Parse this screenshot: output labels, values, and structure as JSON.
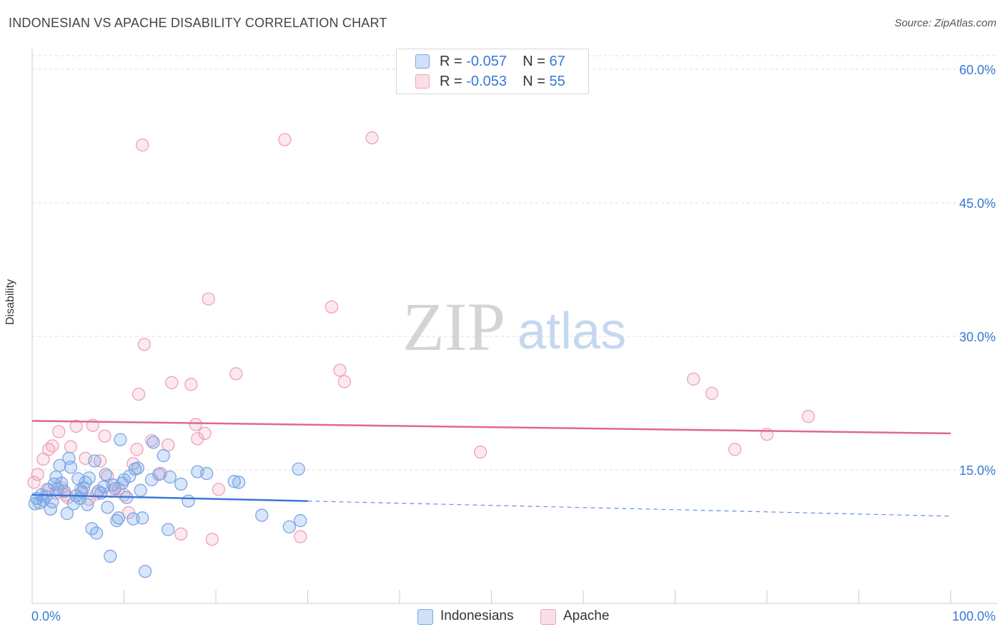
{
  "title": "INDONESIAN VS APACHE DISABILITY CORRELATION CHART",
  "source": "Source: ZipAtlas.com",
  "watermark": {
    "zip": "ZIP",
    "atlas": "atlas"
  },
  "colors": {
    "blue": "#3a78d8",
    "blue_fill": "rgba(120,165,235,0.28)",
    "blue_stroke": "#7aa6e6",
    "pink": "#e06890",
    "pink_fill": "rgba(240,150,180,0.22)",
    "pink_stroke": "#eea0bc",
    "axis_text": "#3a78d8"
  },
  "legend": {
    "rows": [
      {
        "r_label": "R = ",
        "r_value": "-0.057",
        "n_label": "N = ",
        "n_value": "67"
      },
      {
        "r_label": "R = ",
        "r_value": "-0.053",
        "n_label": "N = ",
        "n_value": "55"
      }
    ],
    "series": [
      "Indonesians",
      "Apache"
    ]
  },
  "chart_data": {
    "type": "scatter",
    "title": "INDONESIAN VS APACHE DISABILITY CORRELATION CHART",
    "xlabel": "",
    "ylabel": "Disability",
    "xlim": [
      0,
      100
    ],
    "ylim": [
      0,
      60
    ],
    "x_tick_labels": [
      "0.0%",
      "100.0%"
    ],
    "y_ticks": [
      15,
      30,
      45,
      60
    ],
    "y_tick_labels": [
      "15.0%",
      "30.0%",
      "45.0%",
      "60.0%"
    ],
    "grid": true,
    "series": [
      {
        "name": "Indonesians",
        "r": -0.057,
        "n": 67,
        "trend": {
          "x_start": 0,
          "y_start": 12.2,
          "x_solid_end": 30,
          "y_solid_end": 11.5,
          "x_end": 100,
          "y_end": 9.8
        },
        "points": [
          [
            0.3,
            11.2
          ],
          [
            0.5,
            11.8
          ],
          [
            0.8,
            11.3
          ],
          [
            1.0,
            12.2
          ],
          [
            1.2,
            11.6
          ],
          [
            1.5,
            12.0
          ],
          [
            1.8,
            12.8
          ],
          [
            2.0,
            10.6
          ],
          [
            2.2,
            11.4
          ],
          [
            2.4,
            13.4
          ],
          [
            2.6,
            14.2
          ],
          [
            2.8,
            12.9
          ],
          [
            3.0,
            15.5
          ],
          [
            3.2,
            13.5
          ],
          [
            3.5,
            12.6
          ],
          [
            3.8,
            10.1
          ],
          [
            4.0,
            16.3
          ],
          [
            4.2,
            15.3
          ],
          [
            4.5,
            11.2
          ],
          [
            4.8,
            12.1
          ],
          [
            5.0,
            14.0
          ],
          [
            5.2,
            11.8
          ],
          [
            5.4,
            12.5
          ],
          [
            5.6,
            13.0
          ],
          [
            5.8,
            13.6
          ],
          [
            6.0,
            11.1
          ],
          [
            6.2,
            14.1
          ],
          [
            6.5,
            8.4
          ],
          [
            6.8,
            16.0
          ],
          [
            7.0,
            7.9
          ],
          [
            7.2,
            12.6
          ],
          [
            7.5,
            12.4
          ],
          [
            7.8,
            13.1
          ],
          [
            8.0,
            14.5
          ],
          [
            8.2,
            10.8
          ],
          [
            8.5,
            5.3
          ],
          [
            8.8,
            13.3
          ],
          [
            9.0,
            12.9
          ],
          [
            9.2,
            9.3
          ],
          [
            9.4,
            9.6
          ],
          [
            9.6,
            18.4
          ],
          [
            9.8,
            13.5
          ],
          [
            10.0,
            13.9
          ],
          [
            10.3,
            11.9
          ],
          [
            10.6,
            14.3
          ],
          [
            11.0,
            9.5
          ],
          [
            11.2,
            15.1
          ],
          [
            11.5,
            15.2
          ],
          [
            11.8,
            12.7
          ],
          [
            12.0,
            9.6
          ],
          [
            12.3,
            3.6
          ],
          [
            13.0,
            13.9
          ],
          [
            13.2,
            18.1
          ],
          [
            13.8,
            14.5
          ],
          [
            14.3,
            16.6
          ],
          [
            14.8,
            8.3
          ],
          [
            15.0,
            14.2
          ],
          [
            16.2,
            13.4
          ],
          [
            17.0,
            11.5
          ],
          [
            18.0,
            14.8
          ],
          [
            19.0,
            14.6
          ],
          [
            22.0,
            13.7
          ],
          [
            22.5,
            13.6
          ],
          [
            25.0,
            9.9
          ],
          [
            28.0,
            8.6
          ],
          [
            29.0,
            15.1
          ],
          [
            29.2,
            9.3
          ]
        ]
      },
      {
        "name": "Apache",
        "r": -0.053,
        "n": 55,
        "trend": {
          "x_start": 0,
          "y_start": 20.5,
          "x_end": 100,
          "y_end": 19.1
        },
        "points": [
          [
            0.2,
            13.6
          ],
          [
            0.6,
            14.5
          ],
          [
            1.2,
            16.2
          ],
          [
            1.6,
            12.8
          ],
          [
            1.8,
            17.3
          ],
          [
            2.2,
            17.7
          ],
          [
            2.6,
            12.4
          ],
          [
            2.9,
            19.3
          ],
          [
            3.2,
            13.0
          ],
          [
            3.6,
            12.2
          ],
          [
            3.9,
            11.9
          ],
          [
            4.2,
            17.6
          ],
          [
            4.8,
            19.9
          ],
          [
            5.3,
            12.8
          ],
          [
            5.8,
            16.3
          ],
          [
            6.2,
            11.7
          ],
          [
            6.6,
            20.0
          ],
          [
            7.0,
            12.3
          ],
          [
            7.4,
            16.0
          ],
          [
            7.9,
            18.8
          ],
          [
            8.2,
            14.3
          ],
          [
            8.6,
            12.6
          ],
          [
            9.4,
            12.9
          ],
          [
            10.0,
            12.2
          ],
          [
            10.5,
            10.2
          ],
          [
            11.0,
            15.7
          ],
          [
            11.4,
            17.3
          ],
          [
            11.6,
            23.5
          ],
          [
            12.0,
            51.5
          ],
          [
            12.2,
            29.1
          ],
          [
            13.0,
            18.3
          ],
          [
            14.0,
            14.6
          ],
          [
            14.8,
            17.8
          ],
          [
            15.2,
            24.8
          ],
          [
            16.2,
            7.8
          ],
          [
            17.3,
            24.6
          ],
          [
            17.8,
            20.1
          ],
          [
            18.0,
            18.5
          ],
          [
            18.8,
            19.1
          ],
          [
            19.2,
            34.2
          ],
          [
            19.6,
            7.2
          ],
          [
            20.3,
            12.8
          ],
          [
            22.2,
            25.8
          ],
          [
            27.5,
            52.1
          ],
          [
            29.2,
            7.5
          ],
          [
            32.6,
            33.3
          ],
          [
            33.5,
            26.2
          ],
          [
            34.0,
            24.9
          ],
          [
            37.0,
            52.3
          ],
          [
            48.8,
            17.0
          ],
          [
            72.0,
            25.2
          ],
          [
            74.0,
            23.6
          ],
          [
            76.5,
            17.3
          ],
          [
            80.0,
            19.0
          ],
          [
            84.5,
            21.0
          ]
        ]
      }
    ]
  }
}
